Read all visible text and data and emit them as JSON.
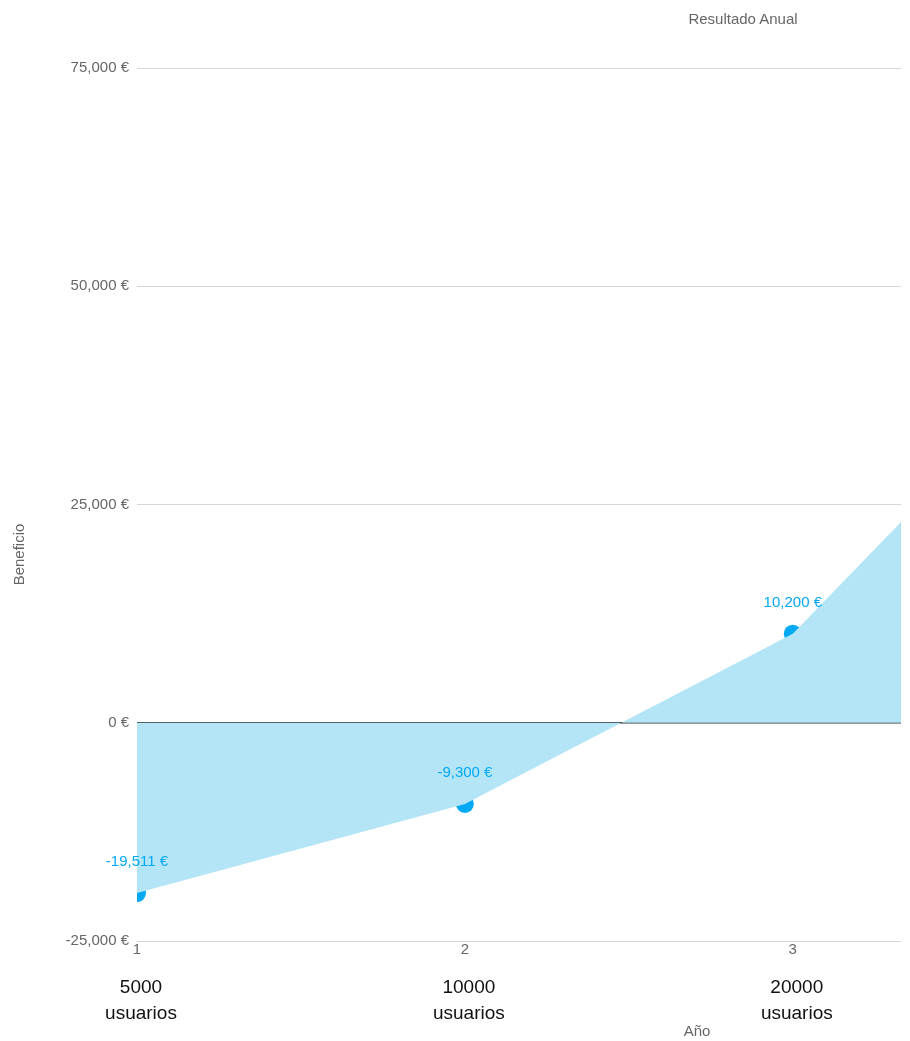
{
  "chart_data": {
    "type": "area",
    "title": "Resultado Anual",
    "xlabel": "Año",
    "ylabel": "Beneficio",
    "xlim": [
      1,
      3.33
    ],
    "xticks": [
      1,
      2,
      3
    ],
    "ylim": [
      -25000,
      75000
    ],
    "yticks": [
      {
        "value": -25000,
        "label": "-25,000 €"
      },
      {
        "value": 0,
        "label": "0 €"
      },
      {
        "value": 25000,
        "label": "25,000 €"
      },
      {
        "value": 50000,
        "label": "50,000 €"
      },
      {
        "value": 75000,
        "label": "75,000 €"
      }
    ],
    "grid": "y",
    "legend": false,
    "series": [
      {
        "color": "#b3e5f7",
        "x": [
          1,
          2,
          3,
          3.33
        ],
        "values": [
          -19511,
          -9300,
          10200,
          23000
        ],
        "marker": "none"
      },
      {
        "type": "scatter",
        "color": "#03a9f4",
        "x": [
          1,
          2,
          3
        ],
        "values": [
          -19511,
          -9300,
          10200
        ],
        "marker": "circle",
        "value_labels": [
          "-19,511 €",
          "-9,300 €",
          "10,200 €"
        ]
      }
    ],
    "annotations": [
      "5000 usuarios",
      "10000 usuarios",
      "20000 usuarios"
    ]
  }
}
